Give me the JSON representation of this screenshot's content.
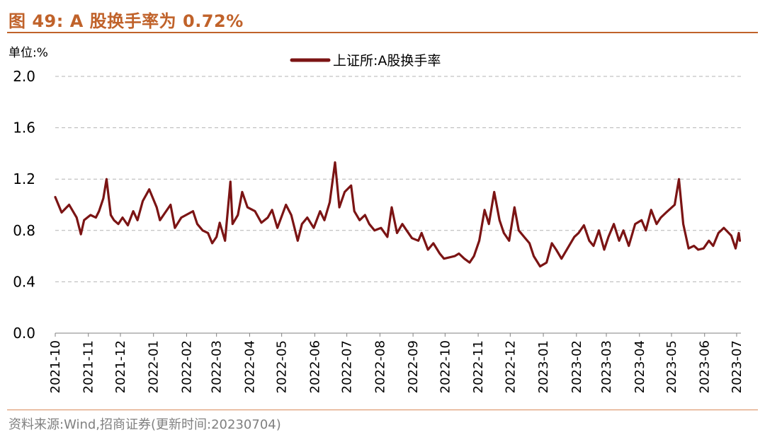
{
  "figure": {
    "title": "图 49:  A 股换手率为 0.72%",
    "source": "资料来源:Wind,招商证券(更新时间:20230704)"
  },
  "colors": {
    "title": "#c0622a",
    "series": "#7b1414",
    "grid": "#b4b4b4",
    "axis": "#808080",
    "source_text": "#808080"
  },
  "chart_data": {
    "type": "line",
    "unit_label": "单位:%",
    "legend": {
      "position": "top-center"
    },
    "grid": {
      "y": true,
      "x": false,
      "style": "dashed"
    },
    "y_axis": {
      "min": 0.0,
      "max": 2.0,
      "ticks": [
        0.0,
        0.4,
        0.8,
        1.2,
        1.6,
        2.0
      ],
      "tick_labels": [
        "0.0",
        "0.4",
        "0.8",
        "1.2",
        "1.6",
        "2.0"
      ]
    },
    "x_axis": {
      "start": "2021-10",
      "end": "2023-07",
      "tick_labels": [
        "2021-10",
        "2021-11",
        "2021-12",
        "2022-01",
        "2022-02",
        "2022-03",
        "2022-04",
        "2022-05",
        "2022-06",
        "2022-07",
        "2022-08",
        "2022-09",
        "2022-10",
        "2022-11",
        "2022-12",
        "2023-01",
        "2023-02",
        "2023-03",
        "2023-04",
        "2023-05",
        "2023-06",
        "2023-07"
      ],
      "label_rotation": "vertical"
    },
    "series": [
      {
        "name": "上证所:A股换手率",
        "x": [
          "2021-10-01",
          "2021-10-07",
          "2021-10-14",
          "2021-10-21",
          "2021-10-25",
          "2021-10-28",
          "2021-11-03",
          "2021-11-08",
          "2021-11-11",
          "2021-11-15",
          "2021-11-18",
          "2021-11-22",
          "2021-11-25",
          "2021-11-29",
          "2021-12-03",
          "2021-12-08",
          "2021-12-13",
          "2021-12-17",
          "2021-12-22",
          "2021-12-28",
          "2022-01-04",
          "2022-01-07",
          "2022-01-12",
          "2022-01-17",
          "2022-01-21",
          "2022-01-27",
          "2022-02-07",
          "2022-02-11",
          "2022-02-16",
          "2022-02-21",
          "2022-02-25",
          "2022-03-01",
          "2022-03-04",
          "2022-03-09",
          "2022-03-14",
          "2022-03-16",
          "2022-03-21",
          "2022-03-25",
          "2022-03-30",
          "2022-04-06",
          "2022-04-12",
          "2022-04-18",
          "2022-04-22",
          "2022-04-27",
          "2022-05-05",
          "2022-05-10",
          "2022-05-16",
          "2022-05-20",
          "2022-05-25",
          "2022-05-31",
          "2022-06-06",
          "2022-06-10",
          "2022-06-15",
          "2022-06-20",
          "2022-06-24",
          "2022-06-29",
          "2022-07-05",
          "2022-07-08",
          "2022-07-13",
          "2022-07-18",
          "2022-07-22",
          "2022-07-27",
          "2022-08-02",
          "2022-08-08",
          "2022-08-12",
          "2022-08-17",
          "2022-08-22",
          "2022-08-26",
          "2022-08-31",
          "2022-09-06",
          "2022-09-09",
          "2022-09-15",
          "2022-09-20",
          "2022-09-26",
          "2022-09-30",
          "2022-10-10",
          "2022-10-14",
          "2022-10-19",
          "2022-10-24",
          "2022-10-28",
          "2022-11-02",
          "2022-11-07",
          "2022-11-11",
          "2022-11-16",
          "2022-11-21",
          "2022-11-25",
          "2022-11-30",
          "2022-12-05",
          "2022-12-09",
          "2022-12-14",
          "2022-12-19",
          "2022-12-23",
          "2022-12-29",
          "2023-01-04",
          "2023-01-09",
          "2023-01-13",
          "2023-01-18",
          "2023-01-30",
          "2023-02-03",
          "2023-02-08",
          "2023-02-13",
          "2023-02-17",
          "2023-02-22",
          "2023-02-27",
          "2023-03-03",
          "2023-03-08",
          "2023-03-13",
          "2023-03-17",
          "2023-03-22",
          "2023-03-28",
          "2023-04-03",
          "2023-04-07",
          "2023-04-12",
          "2023-04-17",
          "2023-04-21",
          "2023-04-26",
          "2023-05-04",
          "2023-05-08",
          "2023-05-12",
          "2023-05-17",
          "2023-05-22",
          "2023-05-26",
          "2023-05-31",
          "2023-06-05",
          "2023-06-09",
          "2023-06-14",
          "2023-06-19",
          "2023-06-26",
          "2023-06-30",
          "2023-07-03",
          "2023-07-04"
        ],
        "y": [
          1.06,
          0.94,
          1.0,
          0.9,
          0.77,
          0.88,
          0.92,
          0.9,
          0.95,
          1.05,
          1.2,
          0.92,
          0.88,
          0.85,
          0.9,
          0.84,
          0.95,
          0.88,
          1.03,
          1.12,
          0.98,
          0.88,
          0.94,
          1.0,
          0.82,
          0.9,
          0.95,
          0.85,
          0.8,
          0.78,
          0.7,
          0.75,
          0.86,
          0.72,
          1.18,
          0.85,
          0.92,
          1.1,
          0.98,
          0.95,
          0.86,
          0.9,
          0.96,
          0.82,
          1.0,
          0.92,
          0.72,
          0.85,
          0.9,
          0.82,
          0.95,
          0.88,
          1.02,
          1.33,
          0.98,
          1.1,
          1.15,
          0.95,
          0.88,
          0.92,
          0.85,
          0.8,
          0.82,
          0.75,
          0.98,
          0.78,
          0.85,
          0.8,
          0.74,
          0.72,
          0.78,
          0.65,
          0.7,
          0.62,
          0.58,
          0.6,
          0.62,
          0.58,
          0.55,
          0.6,
          0.72,
          0.96,
          0.85,
          1.1,
          0.88,
          0.78,
          0.72,
          0.98,
          0.8,
          0.75,
          0.7,
          0.6,
          0.52,
          0.55,
          0.7,
          0.65,
          0.58,
          0.75,
          0.78,
          0.84,
          0.72,
          0.68,
          0.8,
          0.65,
          0.75,
          0.85,
          0.72,
          0.8,
          0.68,
          0.85,
          0.88,
          0.8,
          0.96,
          0.85,
          0.9,
          0.94,
          1.0,
          1.2,
          0.85,
          0.66,
          0.68,
          0.65,
          0.66,
          0.72,
          0.68,
          0.78,
          0.82,
          0.76,
          0.66,
          0.78,
          0.72
        ]
      }
    ]
  }
}
